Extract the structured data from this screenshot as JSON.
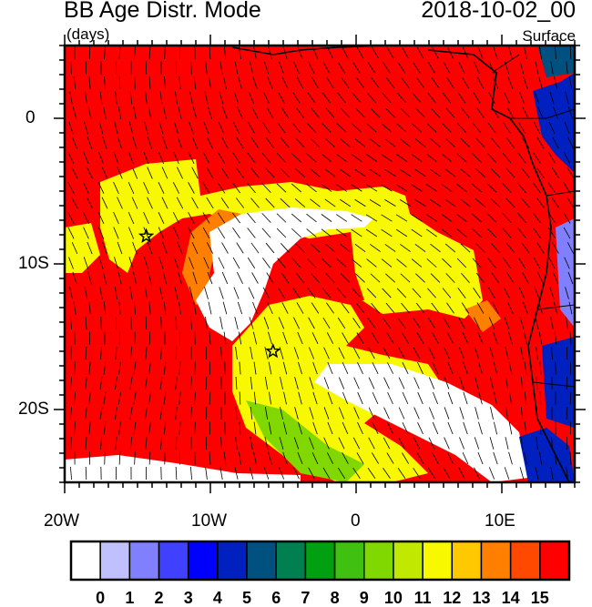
{
  "header": {
    "title": "BB Age Distr. Mode",
    "units": "(days)",
    "datetime": "2018-10-02_00",
    "level": "Surface"
  },
  "map": {
    "lon_range": [
      -20,
      15
    ],
    "lat_range": [
      -25,
      5
    ],
    "x_ticks": [
      {
        "value": -20,
        "label": "20W"
      },
      {
        "value": -10,
        "label": "10W"
      },
      {
        "value": 0,
        "label": "0"
      },
      {
        "value": 10,
        "label": "10E"
      }
    ],
    "y_ticks": [
      {
        "value": 0,
        "label": "0"
      },
      {
        "value": -10,
        "label": "10S"
      },
      {
        "value": -20,
        "label": "20S"
      }
    ],
    "markers": [
      {
        "type": "star",
        "lon": -14.4,
        "lat": -8.1
      },
      {
        "type": "star",
        "lon": -5.7,
        "lat": -16
      }
    ],
    "overlay": "wind vectors",
    "background_value": 15
  },
  "colorbar": {
    "labels": [
      "0",
      "1",
      "2",
      "3",
      "4",
      "5",
      "6",
      "7",
      "8",
      "9",
      "10",
      "11",
      "12",
      "13",
      "14",
      "15"
    ],
    "colors": [
      "#ffffff",
      "#c0c0ff",
      "#8080ff",
      "#4040ff",
      "#0000ff",
      "#0020c0",
      "#005080",
      "#008050",
      "#00a010",
      "#40c010",
      "#80d800",
      "#c0e800",
      "#f8f800",
      "#ffc800",
      "#ff8000",
      "#ff4800",
      "#ff0000"
    ]
  }
}
